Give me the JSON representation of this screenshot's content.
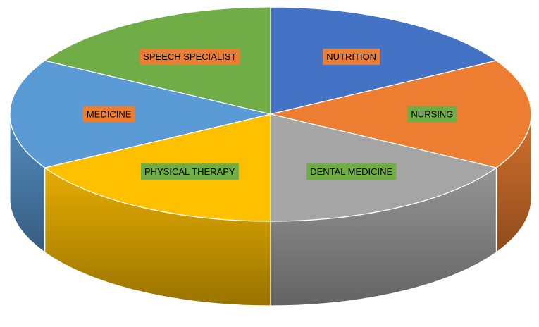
{
  "chart_data": {
    "type": "pie",
    "style": "3d",
    "legend": "none",
    "title": "",
    "slices": [
      {
        "label": "NUTRITION",
        "value": 1,
        "color": "#4472C4",
        "label_bg": "#ED7D31"
      },
      {
        "label": "NURSING",
        "value": 1,
        "color": "#ED7D31",
        "label_bg": "#70AD47"
      },
      {
        "label": "DENTAL MEDICINE",
        "value": 1,
        "color": "#A5A5A5",
        "label_bg": "#70AD47"
      },
      {
        "label": "PHYSICAL THERAPY",
        "value": 1,
        "color": "#FFC000",
        "label_bg": "#70AD47"
      },
      {
        "label": "MEDICINE",
        "value": 1,
        "color": "#5B9BD5",
        "label_bg": "#ED7D31"
      },
      {
        "label": "SPEECH SPECIALIST",
        "value": 1,
        "color": "#70AD47",
        "label_bg": "#ED7D31"
      }
    ]
  }
}
